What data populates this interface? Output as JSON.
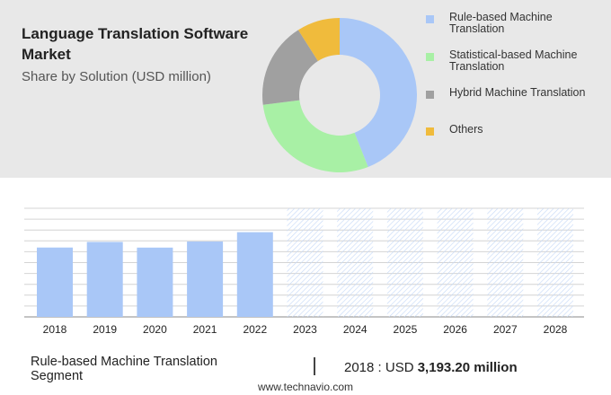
{
  "header": {
    "title": "Language Translation Software Market",
    "subtitle": "Share by Solution (USD million)"
  },
  "legend": [
    {
      "label": "Rule-based Machine Translation",
      "color": "#a9c7f7"
    },
    {
      "label": "Statistical-based Machine Translation",
      "color": "#a8f0a5"
    },
    {
      "label": "Hybrid Machine Translation",
      "color": "#a0a0a0"
    },
    {
      "label": "Others",
      "color": "#f0bb3c"
    }
  ],
  "footer": {
    "segment": "Rule-based Machine Translation Segment",
    "year_label": "2018 : USD",
    "value": "3,193.20 million",
    "url": "www.technavio.com"
  },
  "chart_data": [
    {
      "type": "pie",
      "variant": "donut",
      "labels": [
        "Rule-based Machine Translation",
        "Statistical-based Machine Translation",
        "Hybrid Machine Translation",
        "Others"
      ],
      "values": [
        44,
        29,
        18,
        9
      ],
      "colors": [
        "#a9c7f7",
        "#a8f0a5",
        "#a0a0a0",
        "#f0bb3c"
      ]
    },
    {
      "type": "bar",
      "categories": [
        "2018",
        "2019",
        "2020",
        "2021",
        "2022",
        "2023",
        "2024",
        "2025",
        "2026",
        "2027",
        "2028"
      ],
      "values": [
        3193.2,
        3450,
        3190,
        3470,
        3900,
        null,
        null,
        null,
        null,
        null,
        null
      ],
      "forecast_from": "2023",
      "ylim": [
        0,
        5000
      ],
      "grid": true,
      "bar_color": "#a9c7f7",
      "forecast_pattern_color": "#c7daf7"
    }
  ]
}
